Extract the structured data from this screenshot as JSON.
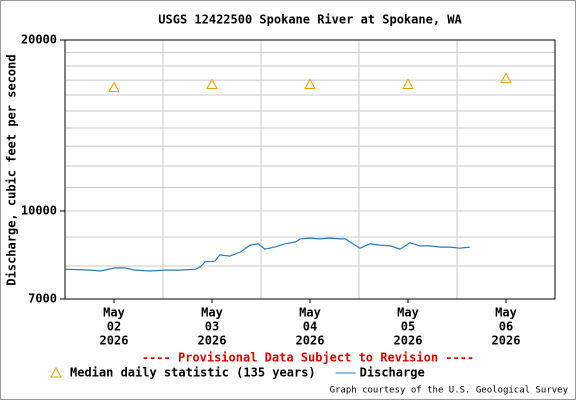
{
  "chart_data": {
    "type": "line",
    "title": "USGS 12422500 Spokane River at Spokane, WA",
    "y_label": "Discharge, cubic feet per second",
    "log_y": true,
    "ylim": [
      7000,
      20000
    ],
    "yticks": [
      7000,
      10000,
      20000
    ],
    "minor_yticks": [
      8000,
      9000,
      11000,
      12000,
      13000,
      14000,
      15000,
      16000,
      17000,
      18000,
      19000
    ],
    "xlim": [
      2,
      7
    ],
    "xticks": [
      3,
      4,
      5,
      6
    ],
    "day_labels": [
      {
        "value": 2,
        "label": [
          "May",
          "02",
          "2026"
        ]
      },
      {
        "value": 3,
        "label": [
          "May",
          "03",
          "2026"
        ]
      },
      {
        "value": 4,
        "label": [
          "May",
          "04",
          "2026"
        ]
      },
      {
        "value": 5,
        "label": [
          "May",
          "05",
          "2026"
        ]
      },
      {
        "value": 6,
        "label": [
          "May",
          "06",
          "2026"
        ]
      }
    ],
    "grid": true,
    "notice": "---- Provisional Data Subject to Revision ----",
    "credit": "Graph courtesy of the U.S. Geological Survey",
    "series": [
      {
        "name": "Median daily statistic (135 years)",
        "marker": "triangle",
        "color": "#e8a000",
        "x": [
          2.5,
          3.5,
          4.5,
          5.5,
          6.5
        ],
        "values": [
          16500,
          16700,
          16700,
          16700,
          17100
        ]
      },
      {
        "name": "Discharge",
        "color": "#2a7ab8",
        "x": [
          2.0,
          2.26,
          2.36,
          2.51,
          2.61,
          2.71,
          2.87,
          3.02,
          3.17,
          3.33,
          3.38,
          3.43,
          3.53,
          3.58,
          3.68,
          3.79,
          3.89,
          3.97,
          4.04,
          4.14,
          4.24,
          4.35,
          4.4,
          4.5,
          4.6,
          4.7,
          4.81,
          4.86,
          4.91,
          5.01,
          5.11,
          5.21,
          5.32,
          5.42,
          5.52,
          5.62,
          5.72,
          5.83,
          5.93,
          6.03,
          6.13
        ],
        "values": [
          7900,
          7870,
          7840,
          7940,
          7940,
          7870,
          7840,
          7870,
          7870,
          7900,
          7970,
          8140,
          8160,
          8370,
          8330,
          8470,
          8710,
          8750,
          8570,
          8640,
          8750,
          8820,
          8930,
          8960,
          8930,
          8960,
          8930,
          8930,
          8820,
          8600,
          8750,
          8710,
          8680,
          8570,
          8790,
          8680,
          8680,
          8640,
          8640,
          8600,
          8640
        ]
      }
    ]
  }
}
